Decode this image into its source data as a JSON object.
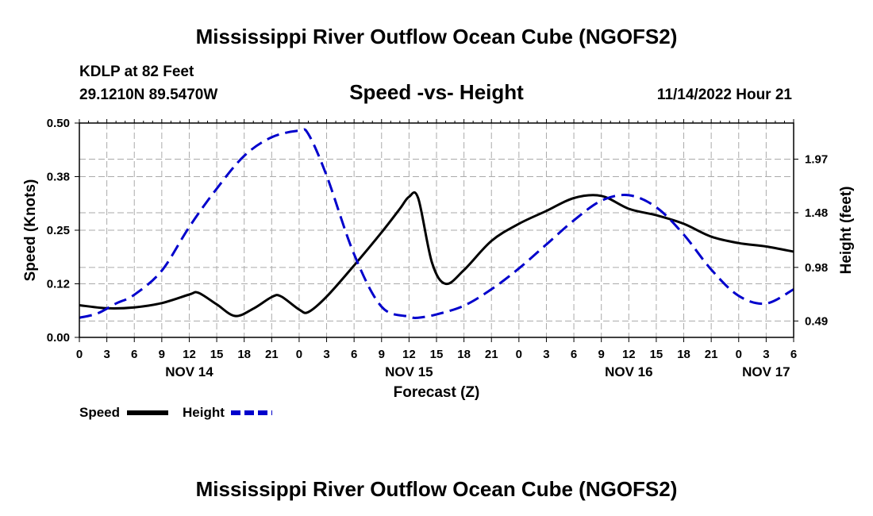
{
  "colors": {
    "speed": "#000000",
    "height": "#0000cc",
    "grid": "#aaaaaa",
    "axis": "#000000"
  },
  "chart_data": {
    "type": "line",
    "title": "Mississippi River Outflow Ocean Cube (NGOFS2)",
    "subtitle": "Speed -vs- Height",
    "station": "KDLP at 82 Feet",
    "location": "29.1210N  89.5470W",
    "datetime": "11/14/2022 Hour 21",
    "footer_title": "Mississippi River Outflow Ocean Cube (NGOFS2)",
    "xlabel": "Forecast (Z)",
    "ylabel_left": "Speed (Knots)",
    "ylabel_right": "Height (feet)",
    "xlim": [
      0,
      78
    ],
    "ylim_left": [
      0,
      0.5
    ],
    "ylim_right": [
      0.34,
      2.3
    ],
    "x_ticks": [
      0,
      3,
      6,
      9,
      12,
      15,
      18,
      21,
      24,
      27,
      30,
      33,
      36,
      39,
      42,
      45,
      48,
      51,
      54,
      57,
      60,
      63,
      66,
      69,
      72,
      75,
      78
    ],
    "x_tick_labels": [
      "0",
      "3",
      "6",
      "9",
      "12",
      "15",
      "18",
      "21",
      "0",
      "3",
      "6",
      "9",
      "12",
      "15",
      "18",
      "21",
      "0",
      "3",
      "6",
      "9",
      "12",
      "15",
      "18",
      "21",
      "0",
      "3",
      "6"
    ],
    "left_ticks": [
      0.0,
      0.125,
      0.25,
      0.375,
      0.5
    ],
    "left_tick_labels": [
      "0.00",
      "0.12",
      "0.25",
      "0.38",
      "0.50"
    ],
    "right_ticks": [
      0.49,
      0.98,
      1.48,
      1.97
    ],
    "right_tick_labels": [
      "0.49",
      "0.98",
      "1.48",
      "1.97"
    ],
    "day_labels": [
      {
        "x": 12,
        "label": "NOV 14"
      },
      {
        "x": 36,
        "label": "NOV 15"
      },
      {
        "x": 60,
        "label": "NOV 16"
      },
      {
        "x": 75,
        "label": "NOV 17"
      }
    ],
    "legend_placement": "bottom-left",
    "series": [
      {
        "name": "Speed",
        "axis": "left",
        "style": "solid",
        "x": [
          0,
          3,
          6,
          9,
          12,
          13,
          15,
          17,
          19,
          21,
          22,
          24,
          25,
          27,
          30,
          33,
          35,
          36,
          37,
          38.5,
          40,
          42,
          45,
          48,
          51,
          54,
          57,
          60,
          63,
          66,
          69,
          72,
          75,
          78
        ],
        "values": [
          0.075,
          0.068,
          0.07,
          0.08,
          0.1,
          0.104,
          0.077,
          0.05,
          0.067,
          0.094,
          0.096,
          0.065,
          0.059,
          0.095,
          0.168,
          0.245,
          0.3,
          0.328,
          0.325,
          0.175,
          0.125,
          0.157,
          0.225,
          0.265,
          0.295,
          0.325,
          0.33,
          0.3,
          0.285,
          0.265,
          0.235,
          0.22,
          0.212,
          0.2
        ]
      },
      {
        "name": "Height",
        "axis": "right",
        "style": "dashed",
        "x": [
          0,
          2,
          4,
          6,
          9,
          12,
          15,
          18,
          21,
          24,
          25,
          27,
          30,
          33,
          36,
          37,
          39,
          42,
          45,
          48,
          51,
          54,
          57,
          60,
          63,
          66,
          69,
          72,
          75,
          78
        ],
        "values": [
          0.52,
          0.56,
          0.65,
          0.73,
          0.95,
          1.35,
          1.7,
          2.0,
          2.17,
          2.23,
          2.2,
          1.82,
          1.1,
          0.62,
          0.53,
          0.52,
          0.55,
          0.63,
          0.78,
          0.97,
          1.19,
          1.41,
          1.59,
          1.64,
          1.53,
          1.28,
          0.96,
          0.72,
          0.65,
          0.78
        ]
      }
    ]
  }
}
